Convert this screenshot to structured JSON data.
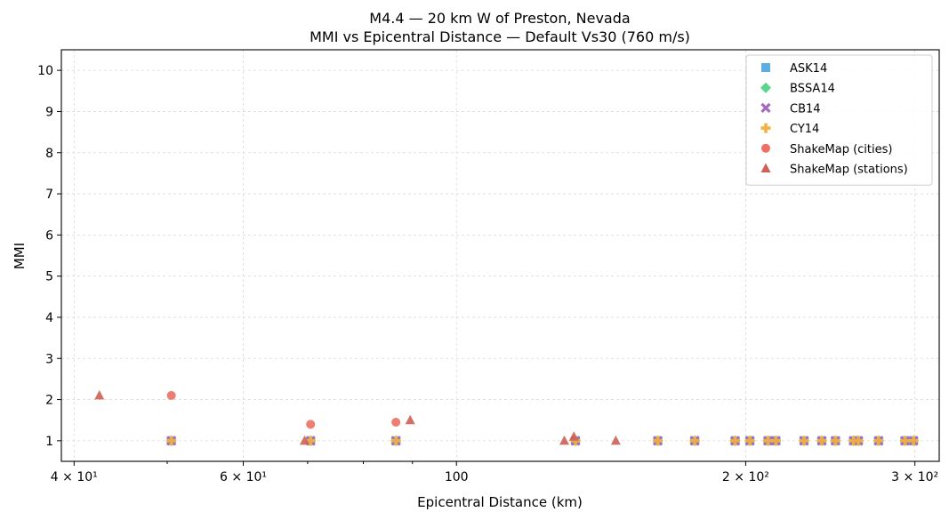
{
  "chart_data": {
    "type": "scatter",
    "title": "M4.4 — 20 km W of Preston, Nevada",
    "subtitle": "MMI vs Epicentral Distance — Default Vs30 (760 m/s)",
    "xlabel": "Epicentral Distance (km)",
    "ylabel": "MMI",
    "x_scale": "log",
    "xlim": [
      38.8,
      318
    ],
    "ylim": [
      0.5,
      10.5
    ],
    "x_major_ticks": [
      {
        "value": 40,
        "label": "4 × 10¹"
      },
      {
        "value": 60,
        "label": "6 × 10¹"
      },
      {
        "value": 100,
        "label": "100"
      },
      {
        "value": 200,
        "label": "2 × 10²"
      },
      {
        "value": 300,
        "label": "3 × 10²"
      }
    ],
    "x_minor_ticks": [
      50,
      70,
      80,
      90
    ],
    "y_ticks": [
      1,
      2,
      3,
      4,
      5,
      6,
      7,
      8,
      9,
      10
    ],
    "grid": true,
    "legend_position": "top-right",
    "series": [
      {
        "name": "ASK14",
        "marker": "square",
        "color": "#5dade2",
        "x": [
          50.5,
          70.5,
          86.5,
          133,
          162,
          177,
          195,
          202,
          211,
          215,
          230,
          240,
          248,
          259,
          262,
          275,
          293,
          299
        ],
        "y": [
          1,
          1,
          1,
          1,
          1,
          1,
          1,
          1,
          1,
          1,
          1,
          1,
          1,
          1,
          1,
          1,
          1,
          1
        ]
      },
      {
        "name": "BSSA14",
        "marker": "diamond",
        "color": "#58d68d",
        "x": [
          50.5,
          70.5,
          86.5,
          133,
          162,
          177,
          195,
          202,
          211,
          215,
          230,
          240,
          248,
          259,
          262,
          275,
          293,
          299
        ],
        "y": [
          1,
          1,
          1,
          1,
          1,
          1,
          1,
          1,
          1,
          1,
          1,
          1,
          1,
          1,
          1,
          1,
          1,
          1
        ]
      },
      {
        "name": "CB14",
        "marker": "x",
        "color": "#a569bd",
        "x": [
          50.5,
          70.5,
          86.5,
          133,
          162,
          177,
          195,
          202,
          211,
          215,
          230,
          240,
          248,
          259,
          262,
          275,
          293,
          299
        ],
        "y": [
          1,
          1,
          1,
          1,
          1,
          1,
          1,
          1,
          1,
          1,
          1,
          1,
          1,
          1,
          1,
          1,
          1,
          1
        ]
      },
      {
        "name": "CY14",
        "marker": "plus",
        "color": "#f5b041",
        "x": [
          50.5,
          70.5,
          86.5,
          133,
          162,
          177,
          195,
          202,
          211,
          215,
          230,
          240,
          248,
          259,
          262,
          275,
          293,
          299
        ],
        "y": [
          1,
          1,
          1,
          1,
          1,
          1,
          1,
          1,
          1,
          1,
          1,
          1,
          1,
          1,
          1,
          1,
          1,
          1
        ]
      },
      {
        "name": "ShakeMap (cities)",
        "marker": "circle",
        "color": "#ec7063",
        "x": [
          50.5,
          70.5,
          86.5
        ],
        "y": [
          2.1,
          1.4,
          1.45
        ]
      },
      {
        "name": "ShakeMap (stations)",
        "marker": "triangle",
        "color": "#cd6155",
        "x": [
          42.5,
          69.5,
          89.5,
          129.5,
          132.5,
          146.5
        ],
        "y": [
          2.1,
          1.0,
          1.5,
          1.0,
          1.1,
          1.0
        ]
      }
    ]
  }
}
